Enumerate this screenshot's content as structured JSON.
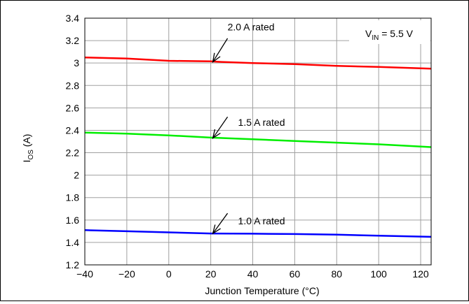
{
  "chart_data": {
    "type": "line",
    "xlabel": "Junction Temperature (°C)",
    "ylabel": {
      "main": "I",
      "sub": "OS",
      "rest": " (A)"
    },
    "xlim": [
      -40,
      125
    ],
    "ylim": [
      1.2,
      3.4
    ],
    "xticks": [
      -40,
      -20,
      0,
      20,
      40,
      60,
      80,
      100,
      120
    ],
    "xtick_labels": [
      "−40",
      "−20",
      "0",
      "20",
      "40",
      "60",
      "80",
      "100",
      "120"
    ],
    "yticks": [
      1.2,
      1.4,
      1.6,
      1.8,
      2,
      2.2,
      2.4,
      2.6,
      2.8,
      3,
      3.2,
      3.4
    ],
    "ytick_labels": [
      "1.2",
      "1.4",
      "1.6",
      "1.8",
      "2",
      "2.2",
      "2.4",
      "2.6",
      "2.8",
      "3",
      "3.2",
      "3.4"
    ],
    "grid": true,
    "legend_box": {
      "main": "V",
      "sub": "IN",
      "rest": " = 5.5 V",
      "placement": "top-right"
    },
    "series": [
      {
        "name": "2.0 A rated",
        "color": "#ff0000",
        "x": [
          -40,
          -20,
          0,
          20,
          25,
          40,
          60,
          80,
          100,
          125
        ],
        "y": [
          3.05,
          3.04,
          3.02,
          3.015,
          3.01,
          3.0,
          2.99,
          2.975,
          2.965,
          2.95
        ]
      },
      {
        "name": "1.5 A rated",
        "color": "#00ee00",
        "x": [
          -40,
          -20,
          0,
          20,
          40,
          60,
          80,
          100,
          125
        ],
        "y": [
          2.38,
          2.37,
          2.355,
          2.335,
          2.32,
          2.305,
          2.29,
          2.275,
          2.25
        ]
      },
      {
        "name": "1.0 A rated",
        "color": "#0000ff",
        "x": [
          -40,
          -20,
          0,
          20,
          40,
          60,
          80,
          100,
          125
        ],
        "y": [
          1.51,
          1.5,
          1.49,
          1.48,
          1.478,
          1.475,
          1.47,
          1.46,
          1.45
        ]
      }
    ],
    "annotations": [
      {
        "text": "2.0 A rated",
        "text_x": 28,
        "text_y": 3.29,
        "arrow_from": [
          28,
          3.22
        ],
        "arrow_to": [
          21,
          3.01
        ]
      },
      {
        "text": "1.5 A rated",
        "text_x": 33,
        "text_y": 2.44,
        "arrow_from": [
          28,
          2.52
        ],
        "arrow_to": [
          21,
          2.33
        ]
      },
      {
        "text": "1.0 A rated",
        "text_x": 33,
        "text_y": 1.56,
        "arrow_from": [
          28,
          1.66
        ],
        "arrow_to": [
          21,
          1.48
        ]
      }
    ]
  }
}
